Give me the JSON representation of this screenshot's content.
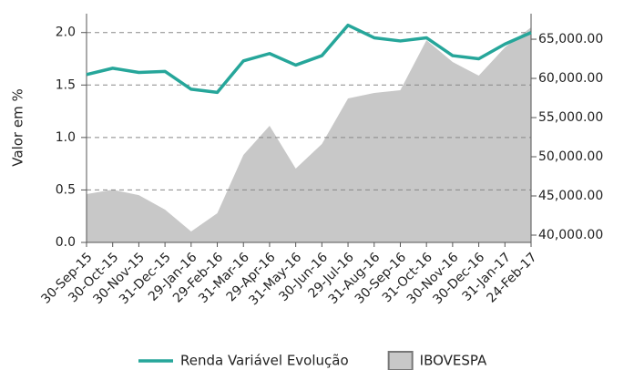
{
  "chart_data": {
    "type": "line-area",
    "ylabel": "Valor em %",
    "categories": [
      "30-Sep-15",
      "30-Oct-15",
      "30-Nov-15",
      "31-Dec-15",
      "29-Jan-16",
      "29-Feb-16",
      "31-Mar-16",
      "29-Apr-16",
      "31-May-16",
      "30-Jun-16",
      "29-Jul-16",
      "31-Aug-16",
      "30-Sep-16",
      "31-Oct-16",
      "30-Nov-16",
      "30-Dec-16",
      "31-Jan-17",
      "24-Feb-17"
    ],
    "series": [
      {
        "name": "Renda Variável Evolução",
        "color": "#26a69a",
        "kind": "line",
        "values": [
          1.6,
          1.66,
          1.62,
          1.63,
          1.46,
          1.43,
          1.73,
          1.8,
          1.69,
          1.78,
          2.07,
          1.95,
          1.92,
          1.95,
          1.78,
          1.75,
          1.89,
          2.0
        ]
      },
      {
        "name": "IBOVESPA",
        "color": "#c8c8c8",
        "kind": "area",
        "axis": "y2",
        "values": [
          45230,
          45800,
          45100,
          43260,
          40460,
          42790,
          50230,
          53950,
          48490,
          51630,
          57440,
          58140,
          58490,
          64880,
          62090,
          60350,
          63950,
          66510
        ]
      }
    ],
    "ylim": [
      0,
      2.18
    ],
    "yticks": [
      {
        "value": 0,
        "label": "0.0"
      },
      0.5,
      {
        "value": 1,
        "label": "1.0"
      },
      1.5,
      {
        "value": 2,
        "label": "2.0"
      }
    ],
    "y2lim": [
      39070,
      68260
    ],
    "y2ticks": [
      {
        "value": 40000,
        "label": "40,000.00"
      },
      {
        "value": 45000,
        "label": "45,000.00"
      },
      {
        "value": 50000,
        "label": "50,000.00"
      },
      {
        "value": 55000,
        "label": "55,000.00"
      },
      {
        "value": 60000,
        "label": "60,000.00"
      },
      {
        "value": 65000,
        "label": "65,000.00"
      }
    ],
    "grid": true
  }
}
